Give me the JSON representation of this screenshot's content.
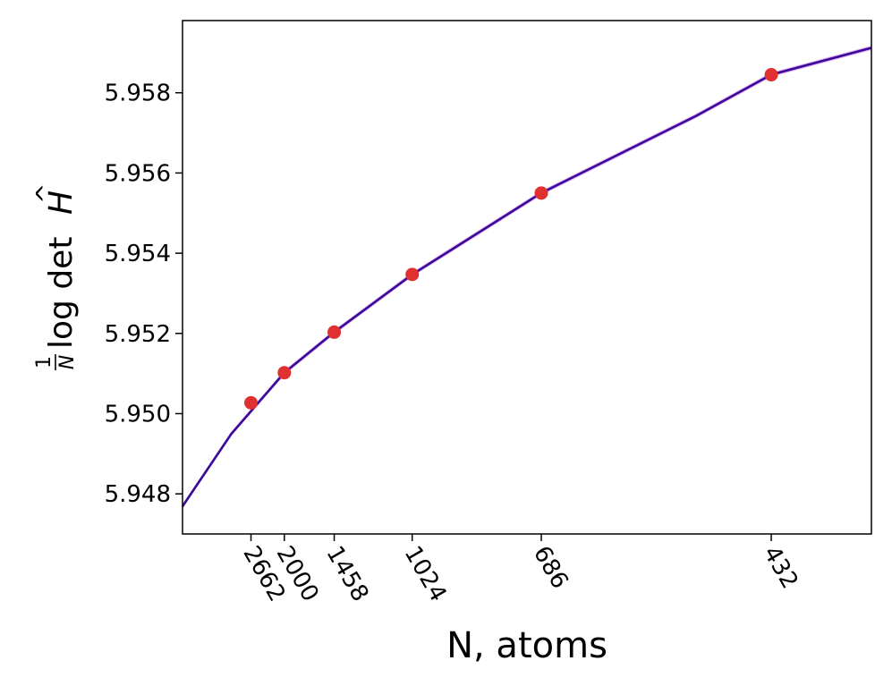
{
  "chart_data": {
    "type": "scatter",
    "xlabel": "N, atoms",
    "ylabel_parts": {
      "num": "1",
      "den": "N",
      "text": "log det",
      "symbol": "H",
      "accent": "^"
    },
    "x_scale": "reciprocal (1/N)",
    "x_ticks": [
      2662,
      2000,
      1458,
      1024,
      686,
      432
    ],
    "x_tick_labels": [
      "2662",
      "2000",
      "1458",
      "1024",
      "686",
      "432"
    ],
    "y_ticks": [
      5.948,
      5.95,
      5.952,
      5.954,
      5.956,
      5.958
    ],
    "y_tick_labels": [
      "5.948",
      "5.950",
      "5.952",
      "5.954",
      "5.956",
      "5.958"
    ],
    "ylim": [
      5.947,
      5.9598
    ],
    "xlim_N": [
      8300,
      372
    ],
    "points": [
      {
        "N": 2662,
        "y": 5.95027
      },
      {
        "N": 2000,
        "y": 5.95102
      },
      {
        "N": 1458,
        "y": 5.95203
      },
      {
        "N": 1024,
        "y": 5.95347
      },
      {
        "N": 686,
        "y": 5.9555
      },
      {
        "N": 432,
        "y": 5.95845
      }
    ],
    "fit_curve": [
      {
        "N": 8300,
        "y": 5.94769
      },
      {
        "N": 3311,
        "y": 5.94949
      },
      {
        "N": 2000,
        "y": 5.95102
      },
      {
        "N": 1458,
        "y": 5.95203
      },
      {
        "N": 1024,
        "y": 5.95347
      },
      {
        "N": 686,
        "y": 5.9555
      },
      {
        "N": 491,
        "y": 5.95743
      },
      {
        "N": 432,
        "y": 5.95845
      },
      {
        "N": 372,
        "y": 5.95912
      }
    ],
    "colors": {
      "points": "#e03030",
      "fit": "#3a0a9a",
      "band": "#d070e8"
    },
    "grid": false,
    "legend": "none"
  }
}
